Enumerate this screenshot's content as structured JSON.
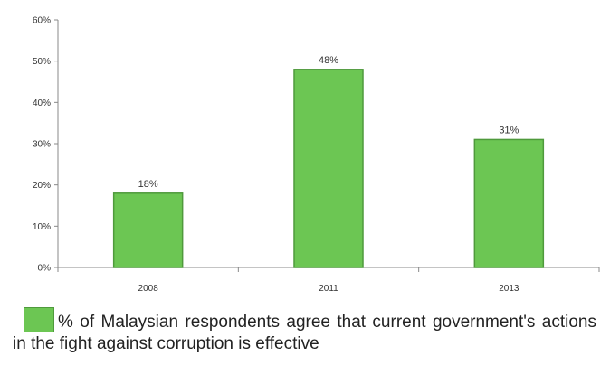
{
  "chart_data": {
    "type": "bar",
    "categories": [
      "2008",
      "2011",
      "2013"
    ],
    "values": [
      18,
      48,
      31
    ],
    "data_labels": [
      "18%",
      "48%",
      "31%"
    ],
    "ylim": [
      0,
      60
    ],
    "yticks": [
      0,
      10,
      20,
      30,
      40,
      50,
      60
    ],
    "ytick_labels": [
      "0%",
      "10%",
      "20%",
      "30%",
      "40%",
      "50%",
      "60%"
    ],
    "legend": {
      "label": "% of Malaysian respondents agree that current government's actions in the fight against corruption is effective",
      "placement": "bottom"
    },
    "bar_color": "#6cc653",
    "bar_border_color": "#4f9a3c",
    "grid": false
  }
}
